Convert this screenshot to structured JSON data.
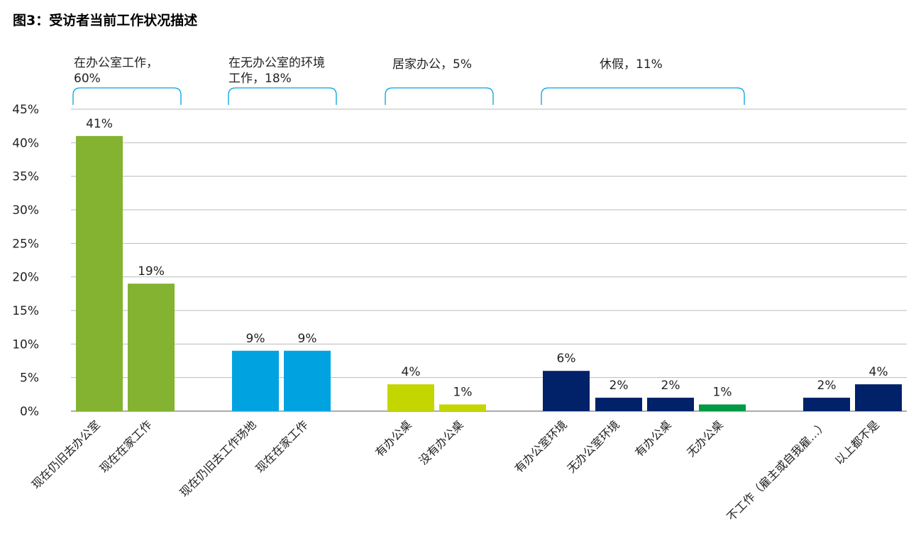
{
  "chart_data": {
    "type": "bar",
    "title": "图3：受访者当前工作状况描述",
    "ylim": [
      0,
      45
    ],
    "yticks": [
      "0%",
      "5%",
      "10%",
      "15%",
      "20%",
      "25%",
      "30%",
      "35%",
      "40%",
      "45%"
    ],
    "grid": true,
    "groups": [
      {
        "label_lines": [
          "在办公室工作，",
          "60%"
        ],
        "bars": [
          {
            "category": "现在仍旧去办公室",
            "value": 41,
            "label": "41%",
            "color": "#84B231"
          },
          {
            "category": "现在在家工作",
            "value": 19,
            "label": "19%",
            "color": "#84B231"
          }
        ]
      },
      {
        "label_lines": [
          "在无办公室的环境",
          "工作，18%"
        ],
        "bars": [
          {
            "category": "现在仍旧去工作场地",
            "value": 9,
            "label": "9%",
            "color": "#00A3E0"
          },
          {
            "category": "现在在家工作",
            "value": 9,
            "label": "9%",
            "color": "#00A3E0"
          }
        ]
      },
      {
        "label_lines": [
          "居家办公，5%"
        ],
        "bars": [
          {
            "category": "有办公桌",
            "value": 4,
            "label": "4%",
            "color": "#C4D600"
          },
          {
            "category": "没有办公桌",
            "value": 1,
            "label": "1%",
            "color": "#C4D600"
          }
        ]
      },
      {
        "label_lines": [
          "休假，11%"
        ],
        "bars": [
          {
            "category": "有办公室环境",
            "value": 6,
            "label": "6%",
            "color": "#012169"
          },
          {
            "category": "无办公室环境",
            "value": 2,
            "label": "2%",
            "color": "#012169"
          },
          {
            "category": "有办公桌",
            "value": 2,
            "label": "2%",
            "color": "#012169"
          },
          {
            "category": "无办公桌",
            "value": 1,
            "label": "1%",
            "color": "#009A44"
          }
        ]
      },
      {
        "label_lines": [],
        "bars": [
          {
            "category": "不工作（雇主或自我雇…）",
            "value": 2,
            "label": "2%",
            "color": "#012169"
          },
          {
            "category": "以上都不是",
            "value": 4,
            "label": "4%",
            "color": "#012169"
          }
        ]
      }
    ],
    "bracket_color": "#00A3E0"
  }
}
